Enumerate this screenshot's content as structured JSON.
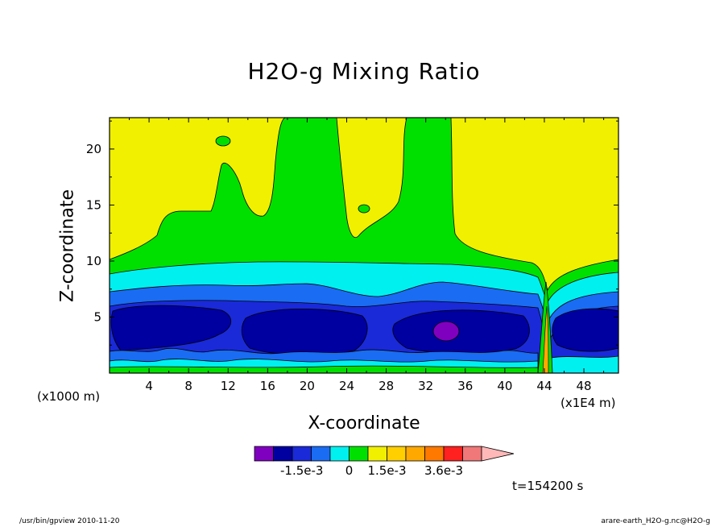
{
  "chart_data": {
    "type": "heatmap",
    "title": "H2O-g Mixing Ratio",
    "xlabel": "X-coordinate",
    "ylabel": "Z-coordinate",
    "x_unit_left": "(x1000 m)",
    "x_unit_right": "(x1E4 m)",
    "xlim": [
      0,
      51.5
    ],
    "ylim": [
      0,
      22.8
    ],
    "x_ticks": [
      "4",
      "8",
      "12",
      "16",
      "20",
      "24",
      "28",
      "32",
      "36",
      "40",
      "44",
      "48"
    ],
    "y_ticks": [
      "5",
      "10",
      "15",
      "20"
    ],
    "x_tick_values": [
      4,
      8,
      12,
      16,
      20,
      24,
      28,
      32,
      36,
      40,
      44,
      48
    ],
    "y_tick_values": [
      5,
      10,
      15,
      20
    ],
    "colorbar": {
      "colors": [
        "#8000c0",
        "#0000a0",
        "#1a2ad8",
        "#1a6cf2",
        "#00f0f0",
        "#00e000",
        "#f0f000",
        "#ffcf00",
        "#ffa800",
        "#ff7800",
        "#ff2020",
        "#f07878",
        "#ffb8b8"
      ],
      "labels": [
        "-1.5e-3",
        "0",
        "1.5e-3",
        "3.6e-3"
      ]
    },
    "time_label": "t=154200 s"
  },
  "footer": {
    "left": "/usr/bin/gpview   2010-11-20",
    "right": "arare-earth_H2O-g.nc@H2O-g"
  }
}
